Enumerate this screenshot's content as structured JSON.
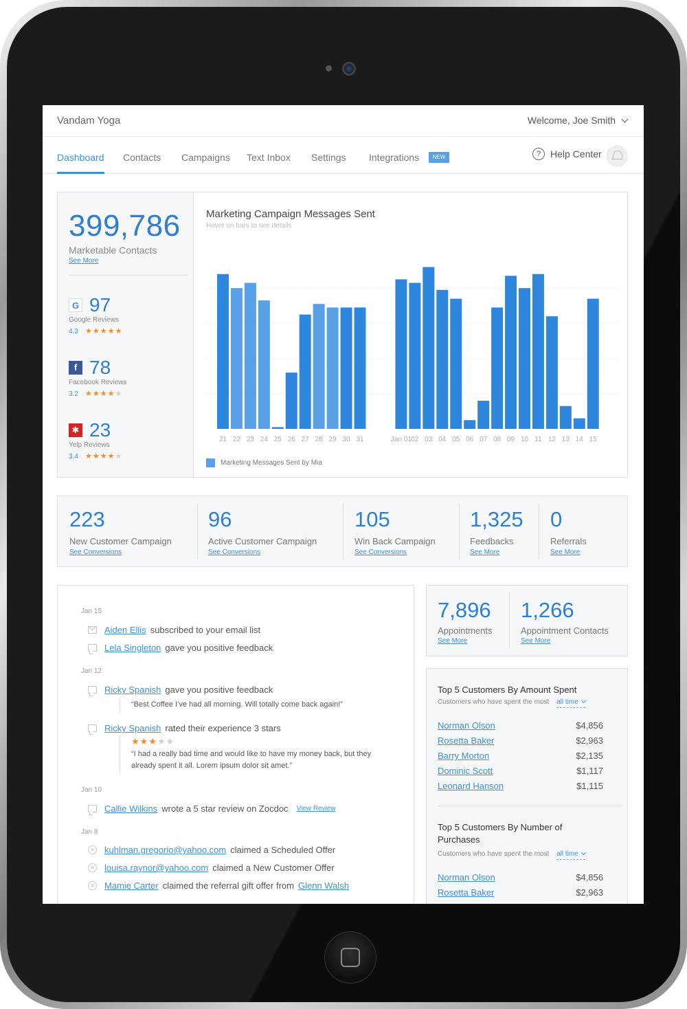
{
  "app": {
    "brand": "Vandam Yoga",
    "welcome": "Welcome, Joe Smith"
  },
  "nav": {
    "tabs": [
      {
        "label": "Dashboard"
      },
      {
        "label": "Contacts"
      },
      {
        "label": "Campaigns"
      },
      {
        "label": "Text Inbox"
      },
      {
        "label": "Settings"
      },
      {
        "label": "Integrations"
      }
    ],
    "new_badge": "NEW",
    "help_label": "Help Center"
  },
  "summary": {
    "contacts_value": "399,786",
    "contacts_label": "Marketable Contacts",
    "contacts_link": "See More",
    "reviews": [
      {
        "icon": "google-icon",
        "glyph": "G",
        "count": "97",
        "label": "Google Reviews",
        "score": "4.3",
        "stars": 4.5
      },
      {
        "icon": "facebook-icon",
        "glyph": "f",
        "count": "78",
        "label": "Facebook Reviews",
        "score": "3.2",
        "stars": 3.5
      },
      {
        "icon": "yelp-icon",
        "glyph": "✱",
        "count": "23",
        "label": "Yelp Reviews",
        "score": "3.4",
        "stars": 3.5
      }
    ]
  },
  "campaign_chart": {
    "title": "Marketing Campaign Messages Sent",
    "hint": "Hover on bars to see details",
    "legend": "Marketing Messages Sent by Mia"
  },
  "chart_data": {
    "type": "bar",
    "title": "Marketing Campaign Messages Sent",
    "categories": [
      "21",
      "22",
      "23",
      "24",
      "25",
      "26",
      "27",
      "28",
      "29",
      "30",
      "31",
      "Jan 01",
      "02",
      "03",
      "04",
      "05",
      "06",
      "07",
      "08",
      "09",
      "10",
      "11",
      "12",
      "13",
      "14",
      "15"
    ],
    "series": [
      {
        "name": "Marketing Messages Sent by Mia",
        "values": [
          88,
          80,
          83,
          73,
          1,
          32,
          65,
          71,
          69,
          69,
          69,
          85,
          83,
          92,
          79,
          74,
          5,
          16,
          69,
          87,
          80,
          88,
          64,
          13,
          6,
          74
        ]
      }
    ],
    "ylim": [
      0,
      100
    ],
    "grid": true,
    "legend": "bottom-left"
  },
  "stats": [
    {
      "value": "223",
      "label": "New Customer Campaign",
      "link": "See Conversions"
    },
    {
      "value": "96",
      "label": "Active Customer Campaign",
      "link": "See Conversions"
    },
    {
      "value": "105",
      "label": "Win Back Campaign",
      "link": "See Conversions"
    },
    {
      "value": "1,325",
      "label": "Feedbacks",
      "link": "See More"
    },
    {
      "value": "0",
      "label": "Referrals",
      "link": "See More"
    }
  ],
  "feed": {
    "dates": [
      "Jan 15",
      "Jan 12",
      "Jan 10",
      "Jan 8"
    ],
    "items": [
      {
        "icon": "mail-icon",
        "who": "Aiden Ellis",
        "text": "subscribed to your email list"
      },
      {
        "icon": "chat-icon",
        "who": "Lela Singleton",
        "text": "gave you positive feedback"
      },
      {
        "icon": "chat-icon",
        "who": "Ricky Spanish",
        "text": "gave you positive feedback",
        "quote": "“Best Coffee I’ve had all morning. Will totally come back again!”"
      },
      {
        "icon": "chat-icon",
        "who": "Ricky Spanish",
        "text": "rated their experience 3 stars",
        "stars": 3,
        "quote_line1": "“I had a really bad time and would like to have my money back, but they",
        "quote_line2": "already spent it all. Lorem ipsum dolor sit amet.”"
      },
      {
        "icon": "chat-icon",
        "who": "Callie Wilkins",
        "text": "wrote a 5 star review on Zocdoc",
        "link": "View Review"
      },
      {
        "icon": "offer-icon",
        "who": "kuhlman.gregorio@yahoo.com",
        "text": "claimed a Scheduled Offer"
      },
      {
        "icon": "offer-icon",
        "who": "louisa.raynor@yahoo.com",
        "text": "claimed a New Customer Offer"
      },
      {
        "icon": "offer-icon",
        "who": "Mamie Carter",
        "text": "claimed the referral gift offer from",
        "who2": "Glenn Walsh"
      }
    ]
  },
  "appointments": [
    {
      "value": "7,896",
      "label": "Appointments",
      "link": "See More"
    },
    {
      "value": "1,266",
      "label": "Appointment Contacts",
      "link": "See More"
    }
  ],
  "top_spent": {
    "title": "Top 5 Customers By Amount Spent",
    "subtitle": "Customers who have spent the most",
    "filter": "all time",
    "rows": [
      {
        "name": "Norman Olson",
        "amount": "$4,856"
      },
      {
        "name": "Rosetta Baker",
        "amount": "$2,963"
      },
      {
        "name": "Barry Morton",
        "amount": "$2,135"
      },
      {
        "name": "Dominic Scott",
        "amount": "$1,117"
      },
      {
        "name": "Leonard Hanson",
        "amount": "$1,115"
      }
    ]
  },
  "top_purchases": {
    "title_line1": "Top 5 Customers By Number of",
    "title_line2": "Purchases",
    "subtitle": "Customers who have spent the most",
    "filter": "all time",
    "rows": [
      {
        "name": "Norman Olson",
        "amount": "$4,856"
      },
      {
        "name": "Rosetta Baker",
        "amount": "$2,963"
      }
    ]
  }
}
